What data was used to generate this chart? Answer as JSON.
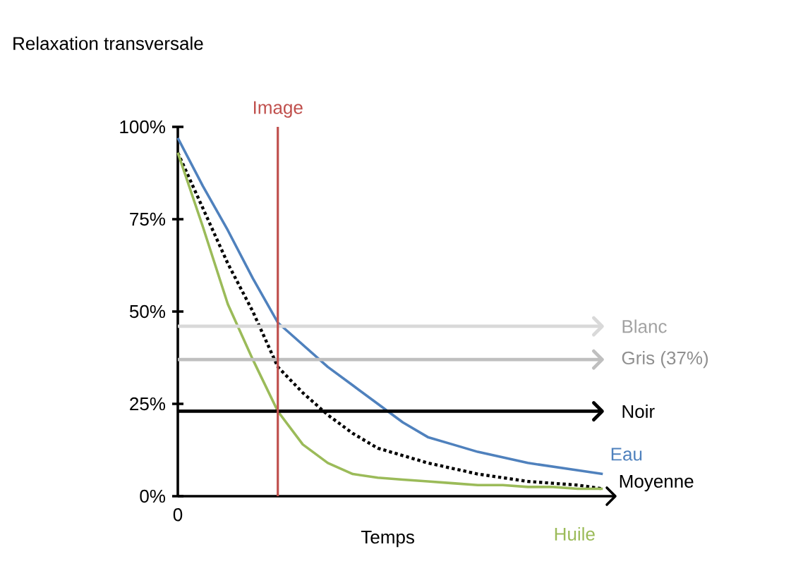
{
  "chart_data": {
    "type": "line",
    "xlabel": "Temps",
    "ylabel": "Relaxation transversale",
    "categories": [
      null,
      null,
      null,
      null,
      null,
      null,
      null,
      null,
      null,
      null,
      null,
      null,
      null,
      null,
      null,
      null,
      null,
      null
    ],
    "series": [
      {
        "name": "Eau",
        "color": "#4f81bd",
        "line_style": "solid",
        "values": [
          97,
          84,
          72,
          59,
          47,
          41,
          35,
          30,
          25,
          20,
          16,
          14,
          12,
          10.5,
          9,
          8,
          7,
          6
        ]
      },
      {
        "name": "Moyenne",
        "color": "#000000",
        "line_style": "dotted",
        "values": [
          93,
          78,
          63,
          50,
          35,
          28,
          22,
          17,
          13,
          11,
          9,
          7.5,
          6,
          5,
          4,
          3.5,
          3,
          2
        ]
      },
      {
        "name": "Huile",
        "color": "#9bbb59",
        "line_style": "solid",
        "values": [
          93,
          73,
          52,
          37,
          23,
          14,
          9,
          6,
          5,
          4.5,
          4,
          3.5,
          3,
          3,
          2.5,
          2.5,
          2,
          2
        ]
      }
    ],
    "ylim": [
      0,
      100
    ],
    "yticks": [
      {
        "value": 0,
        "label": "0%"
      },
      {
        "value": 25,
        "label": "25%"
      },
      {
        "value": 50,
        "label": "50%"
      },
      {
        "value": 75,
        "label": "75%"
      },
      {
        "value": 100,
        "label": "100%"
      }
    ],
    "ref_lines": [
      {
        "axis": "y",
        "value": 46,
        "label": "Blanc",
        "color": "#d9d9d9"
      },
      {
        "axis": "y",
        "value": 37,
        "label": "Gris (37%)",
        "color": "#bfbfbf"
      },
      {
        "axis": "y",
        "value": 23,
        "label": "Noir",
        "color": "#000000"
      }
    ],
    "annotations": [
      "Image",
      "0"
    ]
  }
}
